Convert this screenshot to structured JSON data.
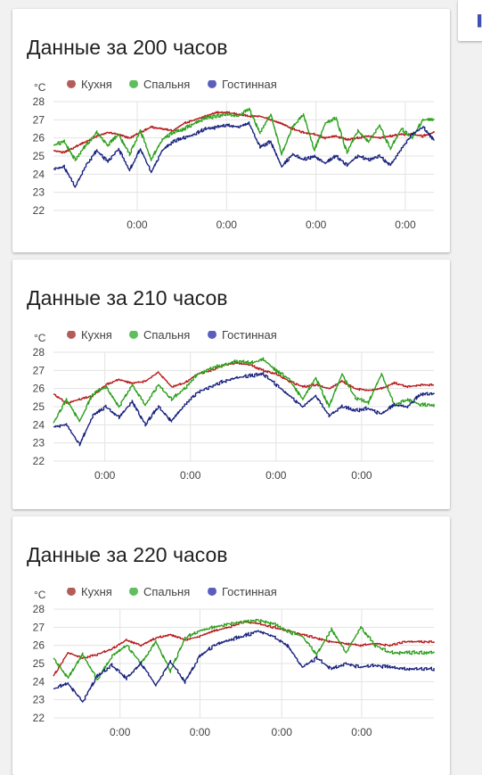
{
  "corner_glyph": "▌",
  "unit": "°C",
  "x_tick_label": "0:00",
  "colors": {
    "kitchen": "#b71c1c",
    "bedroom": "#2ca01c",
    "living": "#1a237e",
    "kitchen_dot": "#b25d5a",
    "bedroom_dot": "#5dbf5d",
    "living_dot": "#5a5fbd",
    "grid": "#e3e3e3"
  },
  "cards": [
    {
      "title": "Данные за 200 часов"
    },
    {
      "title": "Данные за 210 часов"
    },
    {
      "title": "Данные за 220 часов"
    }
  ],
  "chart_data": [
    {
      "type": "line",
      "title": "Данные за 200 часов",
      "ylabel": "°C",
      "ylim": [
        22,
        28
      ],
      "yticks": [
        22,
        23,
        24,
        25,
        26,
        27,
        28
      ],
      "xticks": [
        "0:00",
        "0:00",
        "0:00",
        "0:00"
      ],
      "legend": "top-left",
      "grid": true,
      "series": [
        {
          "name": "Кухня",
          "values": [
            25.3,
            25.2,
            25.5,
            25.8,
            26.1,
            26.3,
            26.2,
            26.0,
            26.3,
            26.6,
            26.5,
            26.4,
            26.8,
            27.0,
            27.2,
            27.4,
            27.4,
            27.3,
            27.2,
            27.2,
            27.0,
            26.8,
            26.5,
            26.3,
            26.2,
            26.0,
            26.1,
            25.9,
            26.0,
            26.1,
            26.0,
            26.1,
            26.2,
            26.2,
            26.1,
            26.3
          ]
        },
        {
          "name": "Спальня",
          "values": [
            25.6,
            25.8,
            24.8,
            25.6,
            26.3,
            25.6,
            26.2,
            25.1,
            26.4,
            24.8,
            25.9,
            26.3,
            26.5,
            26.8,
            27.1,
            27.2,
            27.3,
            27.2,
            27.6,
            26.3,
            27.3,
            25.1,
            26.6,
            27.3,
            25.3,
            26.8,
            27.1,
            25.2,
            26.4,
            25.8,
            26.7,
            25.4,
            26.5,
            26.0,
            27.0,
            27.0
          ]
        },
        {
          "name": "Гостинная",
          "values": [
            24.3,
            24.4,
            23.3,
            24.5,
            25.3,
            24.7,
            25.4,
            24.2,
            25.4,
            24.1,
            25.3,
            25.8,
            26.0,
            26.2,
            26.5,
            26.6,
            26.7,
            26.6,
            26.8,
            25.5,
            25.8,
            24.4,
            25.1,
            24.8,
            25.0,
            24.6,
            25.0,
            24.5,
            25.0,
            24.8,
            25.0,
            24.5,
            25.4,
            26.2,
            26.6,
            25.9
          ]
        }
      ]
    },
    {
      "type": "line",
      "title": "Данные за 210 часов",
      "ylabel": "°C",
      "ylim": [
        22,
        28
      ],
      "yticks": [
        22,
        23,
        24,
        25,
        26,
        27,
        28
      ],
      "xticks": [
        "0:00",
        "0:00",
        "0:00",
        "0:00"
      ],
      "legend": "top-left",
      "grid": true,
      "series": [
        {
          "name": "Кухня",
          "values": [
            25.7,
            25.2,
            25.4,
            25.6,
            26.2,
            26.5,
            26.3,
            26.4,
            26.9,
            26.1,
            26.3,
            26.8,
            27.0,
            27.3,
            27.4,
            27.3,
            27.0,
            26.8,
            26.4,
            26.1,
            26.2,
            26.0,
            26.4,
            26.0,
            25.9,
            26.0,
            26.3,
            26.1,
            26.2,
            26.2
          ]
        },
        {
          "name": "Спальня",
          "values": [
            24.1,
            25.4,
            24.2,
            25.7,
            26.1,
            25.0,
            26.2,
            25.1,
            26.2,
            25.4,
            26.0,
            26.8,
            27.1,
            27.3,
            27.5,
            27.4,
            27.6,
            27.0,
            26.5,
            25.4,
            26.6,
            25.0,
            26.8,
            25.5,
            25.2,
            26.8,
            25.1,
            25.4,
            25.1,
            25.1
          ]
        },
        {
          "name": "Гостинная",
          "values": [
            23.9,
            24.0,
            22.9,
            24.5,
            25.0,
            24.4,
            25.3,
            24.0,
            25.0,
            24.2,
            25.1,
            25.8,
            26.1,
            26.4,
            26.6,
            26.7,
            26.8,
            26.2,
            25.6,
            25.0,
            25.6,
            24.5,
            25.0,
            24.8,
            24.9,
            24.6,
            25.1,
            25.0,
            25.7,
            25.7
          ]
        }
      ]
    },
    {
      "type": "line",
      "title": "Данные за 220 часов",
      "ylabel": "°C",
      "ylim": [
        22,
        28
      ],
      "yticks": [
        22,
        23,
        24,
        25,
        26,
        27,
        28
      ],
      "xticks": [
        "0:00",
        "0:00",
        "0:00",
        "0:00"
      ],
      "legend": "top-left",
      "grid": true,
      "series": [
        {
          "name": "Кухня",
          "values": [
            24.3,
            25.6,
            25.3,
            25.5,
            25.8,
            26.3,
            26.0,
            26.4,
            26.6,
            26.3,
            26.5,
            26.8,
            27.0,
            27.3,
            27.2,
            27.0,
            26.8,
            26.6,
            26.4,
            26.2,
            26.1,
            26.0,
            26.1,
            26.0,
            26.2,
            26.2,
            26.2
          ]
        },
        {
          "name": "Спальня",
          "values": [
            25.3,
            24.2,
            25.5,
            24.1,
            25.4,
            26.0,
            25.0,
            26.2,
            24.6,
            26.4,
            26.8,
            27.0,
            27.2,
            27.3,
            27.4,
            27.2,
            26.8,
            26.5,
            25.5,
            26.9,
            25.6,
            27.0,
            26.0,
            25.6,
            25.6,
            25.6,
            25.6
          ]
        },
        {
          "name": "Гостинная",
          "values": [
            23.6,
            23.9,
            22.9,
            24.3,
            24.9,
            24.2,
            25.0,
            23.8,
            25.1,
            24.0,
            25.4,
            26.0,
            26.3,
            26.5,
            26.8,
            26.5,
            26.0,
            24.8,
            25.3,
            24.7,
            25.0,
            24.8,
            24.9,
            24.8,
            24.7,
            24.7,
            24.7
          ]
        }
      ]
    }
  ]
}
